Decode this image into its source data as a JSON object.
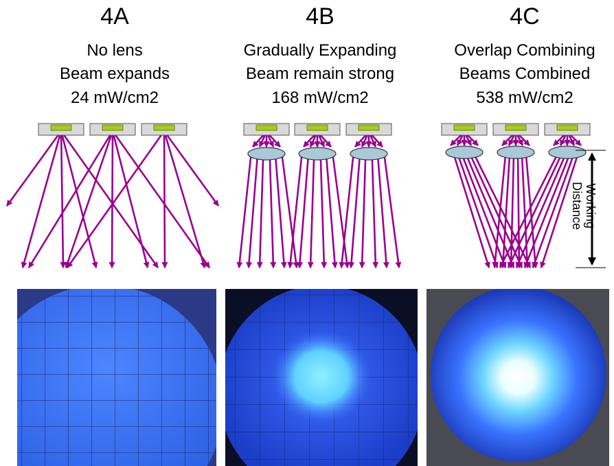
{
  "panels": [
    {
      "id": "4A",
      "title": "4A",
      "caption_lines": [
        "No lens",
        "Beam expands",
        "24 mW/cm2"
      ],
      "lens": false,
      "photo": {
        "spot": "none"
      }
    },
    {
      "id": "4B",
      "title": "4B",
      "caption_lines": [
        "Gradually Expanding",
        "Beam remain strong",
        "168 mW/cm2"
      ],
      "lens": true,
      "photo": {
        "spot": "medium"
      }
    },
    {
      "id": "4C",
      "title": "4C",
      "caption_lines": [
        "Overlap Combining",
        "Beams Combined",
        "538 mW/cm2"
      ],
      "lens": true,
      "photo": {
        "spot": "bright"
      }
    }
  ],
  "working_distance_label": "Working\nDistance",
  "colors": {
    "ray": "#99008f",
    "led_body": "#d9d9d9",
    "led_chip": "#a5cf13",
    "lens_fill": "#a9c8d8",
    "photo_bg": "#1d3f98",
    "photo_light": "#3f7bff",
    "photo_glow": "#7bc8ff",
    "photo_core": "#ffffff"
  }
}
